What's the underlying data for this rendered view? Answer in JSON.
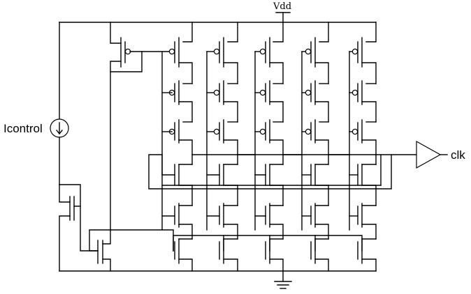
{
  "labels": {
    "supply": "Vdd",
    "current_source": "Icontrol",
    "output": "clk"
  },
  "icons": {
    "current_source": "current-source-icon",
    "ground": "ground-icon",
    "buffer": "buffer-triangle-icon",
    "pmos": "pmos-transistor-icon",
    "nmos": "nmos-transistor-icon"
  }
}
